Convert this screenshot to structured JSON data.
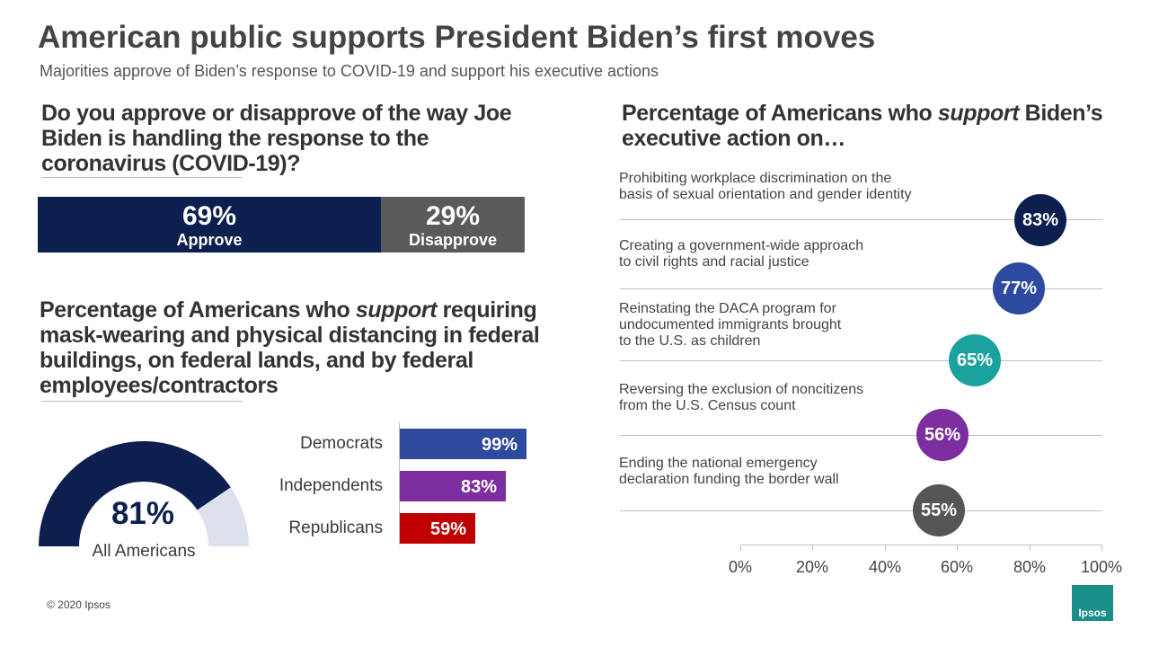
{
  "title": "American public supports President Biden’s first moves",
  "subtitle": "Majorities approve of Biden’s response to COVID-19 and support his executive actions",
  "colors": {
    "navy": "#0c1f4e",
    "gray": "#5a5a5a",
    "light": "#dde1ee"
  },
  "chart_data": [
    {
      "type": "bar",
      "orientation": "horizontal-stacked",
      "title": "Do you approve or disapprove of the way Joe Biden is handling the response to the coronavirus (COVID-19)?",
      "categories": [
        "Approve",
        "Disapprove"
      ],
      "values": [
        69,
        29
      ],
      "labels": [
        "69%",
        "29%"
      ],
      "colors": [
        "#0c1f4e",
        "#5a5a5a"
      ]
    },
    {
      "type": "pie",
      "style": "half-donut gauge",
      "title": "Percentage of Americans who support requiring mask-wearing and physical distancing in federal buildings, on federal lands, and by federal employees/contractors",
      "category": "All Americans",
      "value": 81,
      "label": "81%"
    },
    {
      "type": "bar",
      "orientation": "horizontal",
      "categories": [
        "Democrats",
        "Independents",
        "Republicans"
      ],
      "values": [
        99,
        83,
        59
      ],
      "labels": [
        "99%",
        "83%",
        "59%"
      ],
      "colors": [
        "#2e4a9e",
        "#7d2fa0",
        "#c00000"
      ]
    },
    {
      "type": "scatter",
      "style": "dot plot",
      "title": "Percentage of Americans who support Biden’s executive action on…",
      "categories": [
        "Prohibiting workplace discrimination on the basis of sexual orientation and gender identity",
        "Creating a government-wide approach to civil rights and racial justice",
        "Reinstating the DACA program for undocumented immigrants brought to the U.S. as children",
        "Reversing the exclusion of noncitizens from the U.S. Census count",
        "Ending the national emergency declaration funding the border wall"
      ],
      "values": [
        83,
        77,
        65,
        56,
        55
      ],
      "labels": [
        "83%",
        "77%",
        "65%",
        "56%",
        "55%"
      ],
      "colors": [
        "#0c1f4e",
        "#2e4a9e",
        "#1aa39e",
        "#7d2fa0",
        "#555555"
      ],
      "xlim": [
        0,
        100
      ],
      "x_ticks": [
        "0%",
        "20%",
        "40%",
        "60%",
        "80%",
        "100%"
      ]
    }
  ],
  "q1": {
    "text": "Do you approve or disapprove of the way Joe Biden is handling the response to the coronavirus (COVID-19)?"
  },
  "approval": {
    "approve_pct": "69%",
    "approve_label": "Approve",
    "disapprove_pct": "29%",
    "disapprove_label": "Disapprove"
  },
  "q2": {
    "pre": "Percentage of Americans who ",
    "em": "support",
    "post": " requiring mask-wearing and physical distancing in federal buildings, on federal lands, and by federal employees/contractors"
  },
  "gauge": {
    "value": "81%",
    "label": "All Americans"
  },
  "parties": [
    {
      "name": "Democrats",
      "pct": "99%"
    },
    {
      "name": "Independents",
      "pct": "83%"
    },
    {
      "name": "Republicans",
      "pct": "59%"
    }
  ],
  "q3": {
    "pre": "Percentage of Americans who ",
    "em": "support",
    "post": " Biden’s executive action on…"
  },
  "actions": [
    {
      "line1": "Prohibiting workplace discrimination on the",
      "line2": "basis of sexual orientation and gender identity",
      "line3": "",
      "pct": "83%"
    },
    {
      "line1": "Creating a government-wide approach",
      "line2": "to civil rights and racial justice",
      "line3": "",
      "pct": "77%"
    },
    {
      "line1": "Reinstating the DACA program for",
      "line2": "undocumented immigrants brought",
      "line3": "to the U.S. as children",
      "pct": "65%"
    },
    {
      "line1": "Reversing the exclusion of noncitizens",
      "line2": "from the U.S. Census count",
      "line3": "",
      "pct": "56%"
    },
    {
      "line1": "Ending the national emergency",
      "line2": "declaration funding the border wall",
      "line3": "",
      "pct": "55%"
    }
  ],
  "axis_ticks": [
    "0%",
    "20%",
    "40%",
    "60%",
    "80%",
    "100%"
  ],
  "copyright": "© 2020 Ipsos",
  "logo": {
    "icon": "ipsos-logo-icon",
    "text": "Ipsos"
  }
}
